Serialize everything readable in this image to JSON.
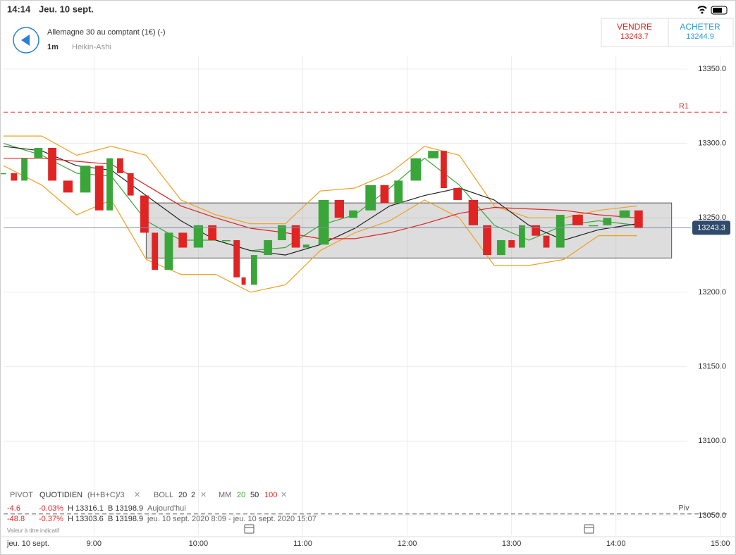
{
  "status_bar": {
    "time": "14:14",
    "date": "Jeu. 10 sept."
  },
  "header": {
    "title": "Allemagne 30 au comptant (1€) (-)",
    "interval": "1m",
    "chart_style": "Heikin-Ashi",
    "sell": {
      "label": "VENDRE",
      "price": 13243.7
    },
    "buy": {
      "label": "ACHETER",
      "price": 13244.9
    }
  },
  "chart_data": {
    "type": "candlestick",
    "x": [
      488,
      494,
      500,
      508,
      516,
      525,
      535,
      543,
      549,
      555,
      561,
      569,
      575,
      583,
      591,
      600,
      608,
      616,
      622,
      626,
      632,
      640,
      648,
      656,
      662,
      672,
      681,
      689,
      699,
      707,
      715,
      725,
      735,
      741,
      749,
      758,
      766,
      774,
      780,
      786,
      794,
      800,
      808,
      818,
      827,
      835,
      845,
      853
    ],
    "values": [
      13280,
      13275,
      13290,
      13297,
      13275,
      13267,
      13285,
      13255,
      13290,
      13280,
      13265,
      13240,
      13215,
      13240,
      13230,
      13245,
      13235,
      13235,
      13210,
      13205,
      13225,
      13235,
      13245,
      13230,
      13232,
      13262,
      13250,
      13255,
      13272,
      13260,
      13275,
      13290,
      13295,
      13270,
      13262,
      13245,
      13225,
      13235,
      13230,
      13245,
      13238,
      13230,
      13252,
      13245,
      13245,
      13250,
      13255,
      13243
    ],
    "up_color": "#3aa63a",
    "down_color": "#e02424",
    "overlay_x": [
      488,
      510,
      530,
      550,
      570,
      590,
      610,
      630,
      650,
      670,
      690,
      710,
      730,
      750,
      770,
      790,
      810,
      830,
      852
    ],
    "moving_averages": [
      {
        "name": "20",
        "color": "#3aa63a",
        "values": [
          13300,
          13292,
          13280,
          13278,
          13248,
          13235,
          13235,
          13228,
          13230,
          13245,
          13252,
          13270,
          13290,
          13272,
          13245,
          13235,
          13245,
          13248,
          13245
        ]
      },
      {
        "name": "50",
        "color": "#222222",
        "values": [
          13298,
          13295,
          13285,
          13282,
          13265,
          13248,
          13235,
          13228,
          13225,
          13232,
          13243,
          13258,
          13265,
          13270,
          13262,
          13245,
          13235,
          13242,
          13246
        ]
      },
      {
        "name": "100",
        "color": "#e02424",
        "values": [
          13290,
          13290,
          13288,
          13286,
          13272,
          13258,
          13250,
          13243,
          13240,
          13236,
          13236,
          13240,
          13246,
          13253,
          13257,
          13256,
          13255,
          13252,
          13250
        ]
      }
    ],
    "bollinger": {
      "color": "#f0a020",
      "upper": [
        13305,
        13305,
        13292,
        13298,
        13292,
        13262,
        13252,
        13246,
        13246,
        13268,
        13270,
        13280,
        13298,
        13292,
        13258,
        13250,
        13250,
        13255,
        13258
      ],
      "lower": [
        13285,
        13272,
        13252,
        13262,
        13222,
        13212,
        13212,
        13200,
        13205,
        13228,
        13240,
        13248,
        13262,
        13250,
        13218,
        13218,
        13222,
        13238,
        13238
      ]
    },
    "zone": {
      "x": [
        570,
        872
      ],
      "y": [
        13223,
        13260
      ]
    },
    "levels": [
      {
        "label": "R1",
        "value": 13321,
        "color": "#e53935"
      },
      {
        "label": "Piv",
        "value": 13051,
        "color": "#555555"
      }
    ],
    "last_price": 13243.3,
    "xlim": [
      488,
      909
    ],
    "ylim": [
      13036.7,
      13358.5
    ],
    "xticks": [
      {
        "value": 540,
        "label": "9:00"
      },
      {
        "value": 600,
        "label": "10:00"
      },
      {
        "value": 660,
        "label": "11:00"
      },
      {
        "value": 720,
        "label": "12:00"
      },
      {
        "value": 780,
        "label": "13:00"
      },
      {
        "value": 840,
        "label": "14:00"
      },
      {
        "value": 900,
        "label": "15:00"
      }
    ],
    "yticks": [
      {
        "value": 13050,
        "label": "13050.0"
      },
      {
        "value": 13100,
        "label": "13100.0"
      },
      {
        "value": 13150,
        "label": "13150.0"
      },
      {
        "value": 13200,
        "label": "13200.0"
      },
      {
        "value": 13250,
        "label": "13250.0"
      },
      {
        "value": 13300,
        "label": "13300.0"
      },
      {
        "value": 13350,
        "label": "13350.0"
      }
    ],
    "grid": true,
    "date_label": "jeu. 10 sept."
  },
  "indicators": {
    "pivot": {
      "label": "PIVOT",
      "period": "QUOTIDIEN",
      "formula": "(H+B+C)/3"
    },
    "boll": {
      "label": "BOLL",
      "params": [
        20,
        2
      ]
    },
    "mm": {
      "label": "MM"
    },
    "rows": [
      {
        "change": -4.6,
        "change_pct": "-0.03%",
        "high": "H 13316.1",
        "low": "B 13198.9",
        "period": "Aujourd'hui"
      },
      {
        "change": -48.8,
        "change_pct": "-0.37%",
        "high": "H 13303.6",
        "low": "B 13198.9",
        "period": "jeu. 10 sept. 2020 8:09 - jeu. 10 sept. 2020 15:07"
      }
    ],
    "note": "Valeur à titre indicatif"
  }
}
